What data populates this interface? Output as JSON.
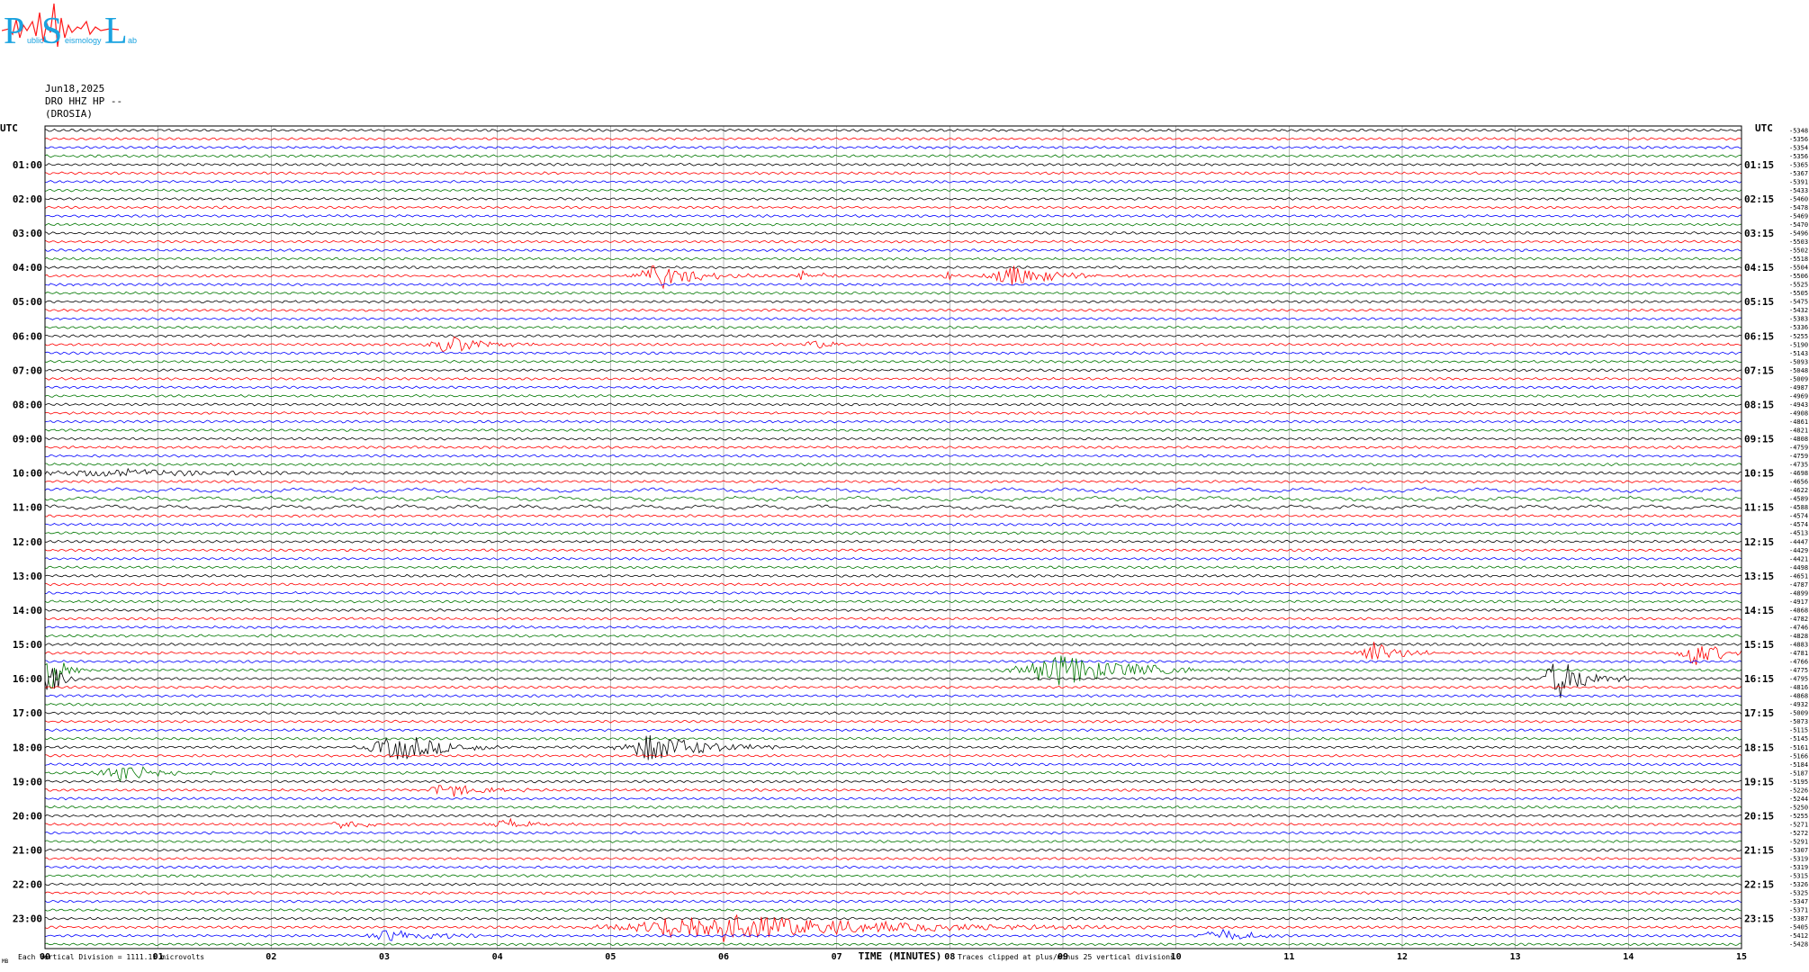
{
  "logo": {
    "letters": [
      "P",
      "S",
      "L"
    ],
    "words": [
      "ublic",
      "eismology",
      "ab"
    ],
    "colors": {
      "primary": "#1aa3e0",
      "wave": "#ff1a1a"
    }
  },
  "header": {
    "date": "Jun18,2025",
    "channel": "DRO HHZ HP --",
    "station": "(DROSIA)"
  },
  "footer": {
    "scale_note": "Each Vertical Division = 1111.11 microvolts",
    "xlabel": "TIME (MINUTES)",
    "clip_note": "Traces clipped at plus/minus 25 vertical divisions",
    "corner_mark": "MB"
  },
  "chart_data": {
    "type": "line",
    "title": "",
    "xlabel": "TIME (MINUTES)",
    "ylabel": "UTC",
    "right_ylabel": "UTC",
    "x_range": [
      0,
      15
    ],
    "x_ticks": [
      "00",
      "01",
      "02",
      "03",
      "04",
      "05",
      "06",
      "07",
      "08",
      "09",
      "10",
      "11",
      "12",
      "13",
      "14",
      "15"
    ],
    "left_hour_labels": [
      "01:00",
      "02:00",
      "03:00",
      "04:00",
      "05:00",
      "06:00",
      "07:00",
      "08:00",
      "09:00",
      "10:00",
      "11:00",
      "12:00",
      "13:00",
      "14:00",
      "15:00",
      "16:00",
      "17:00",
      "18:00",
      "19:00",
      "20:00",
      "21:00",
      "22:00",
      "23:00"
    ],
    "right_hour_labels": [
      "01:15",
      "02:15",
      "03:15",
      "04:15",
      "05:15",
      "06:15",
      "07:15",
      "08:15",
      "09:15",
      "10:15",
      "11:15",
      "12:15",
      "13:15",
      "14:15",
      "15:15",
      "16:15",
      "17:15",
      "18:15",
      "19:15",
      "20:15",
      "21:15",
      "22:15",
      "23:15"
    ],
    "trace_count": 96,
    "trace_color_cycle": [
      "#000000",
      "#ff0000",
      "#0000ff",
      "#007700"
    ],
    "trace_offsets": [
      "-5348",
      "-5356",
      "-5354",
      "-5356",
      "-5365",
      "-5367",
      "-5391",
      "-5433",
      "-5460",
      "-5478",
      "-5469",
      "-5470",
      "-5496",
      "-5503",
      "-5502",
      "-5518",
      "-5504",
      "-5506",
      "-5525",
      "-5505",
      "-5475",
      "-5432",
      "-5383",
      "-5336",
      "-5255",
      "-5190",
      "-5143",
      "-5093",
      "-5048",
      "-5009",
      "-4987",
      "-4969",
      "-4943",
      "-4908",
      "-4861",
      "-4821",
      "-4808",
      "-4759",
      "-4759",
      "-4735",
      "-4698",
      "-4656",
      "-4622",
      "-4589",
      "-4588",
      "-4574",
      "-4574",
      "-4513",
      "-4447",
      "-4429",
      "-4421",
      "-4498",
      "-4651",
      "-4787",
      "-4899",
      "-4917",
      "-4868",
      "-4782",
      "-4746",
      "-4828",
      "-4883",
      "-4781",
      "-4766",
      "-4775",
      "-4795",
      "-4816",
      "-4868",
      "-4932",
      "-5009",
      "-5073",
      "-5115",
      "-5145",
      "-5161",
      "-5166",
      "-5184",
      "-5187",
      "-5195",
      "-5226",
      "-5244",
      "-5250",
      "-5255",
      "-5271",
      "-5272",
      "-5291",
      "-5307",
      "-5319",
      "-5319",
      "-5315",
      "-5326",
      "-5325",
      "-5347",
      "-5371",
      "-5387",
      "-5405",
      "-5412",
      "-5428"
    ],
    "events": [
      {
        "trace": 17,
        "t": 5.45,
        "amp": 14,
        "dur": 0.35
      },
      {
        "trace": 17,
        "t": 6.7,
        "amp": 6,
        "dur": 0.1
      },
      {
        "trace": 17,
        "t": 6.9,
        "amp": 10,
        "dur": 0.05
      },
      {
        "trace": 17,
        "t": 7.98,
        "amp": 10,
        "dur": 0.05
      },
      {
        "trace": 17,
        "t": 8.6,
        "amp": 12,
        "dur": 0.4
      },
      {
        "trace": 25,
        "t": 3.6,
        "amp": 10,
        "dur": 0.35
      },
      {
        "trace": 25,
        "t": 6.85,
        "amp": 4,
        "dur": 0.3
      },
      {
        "trace": 40,
        "t": 0.6,
        "amp": 4,
        "dur": 1.4
      },
      {
        "trace": 61,
        "t": 11.75,
        "amp": 13,
        "dur": 0.25
      },
      {
        "trace": 61,
        "t": 14.6,
        "amp": 15,
        "dur": 0.25
      },
      {
        "trace": 63,
        "t": 9.0,
        "amp": 18,
        "dur": 0.7
      },
      {
        "trace": 63,
        "t": 0.05,
        "amp": 22,
        "dur": 0.15
      },
      {
        "trace": 64,
        "t": 13.4,
        "amp": 22,
        "dur": 0.3
      },
      {
        "trace": 64,
        "t": 0.05,
        "amp": 22,
        "dur": 0.12
      },
      {
        "trace": 72,
        "t": 3.15,
        "amp": 15,
        "dur": 0.5
      },
      {
        "trace": 72,
        "t": 5.4,
        "amp": 16,
        "dur": 0.5
      },
      {
        "trace": 75,
        "t": 0.7,
        "amp": 10,
        "dur": 0.35
      },
      {
        "trace": 77,
        "t": 3.6,
        "amp": 8,
        "dur": 0.35
      },
      {
        "trace": 81,
        "t": 2.65,
        "amp": 5,
        "dur": 0.3
      },
      {
        "trace": 81,
        "t": 4.1,
        "amp": 5,
        "dur": 0.3
      },
      {
        "trace": 93,
        "t": 6.0,
        "amp": 16,
        "dur": 1.5
      },
      {
        "trace": 94,
        "t": 10.4,
        "amp": 8,
        "dur": 0.3
      },
      {
        "trace": 94,
        "t": 3.1,
        "amp": 7,
        "dur": 0.4
      }
    ]
  }
}
